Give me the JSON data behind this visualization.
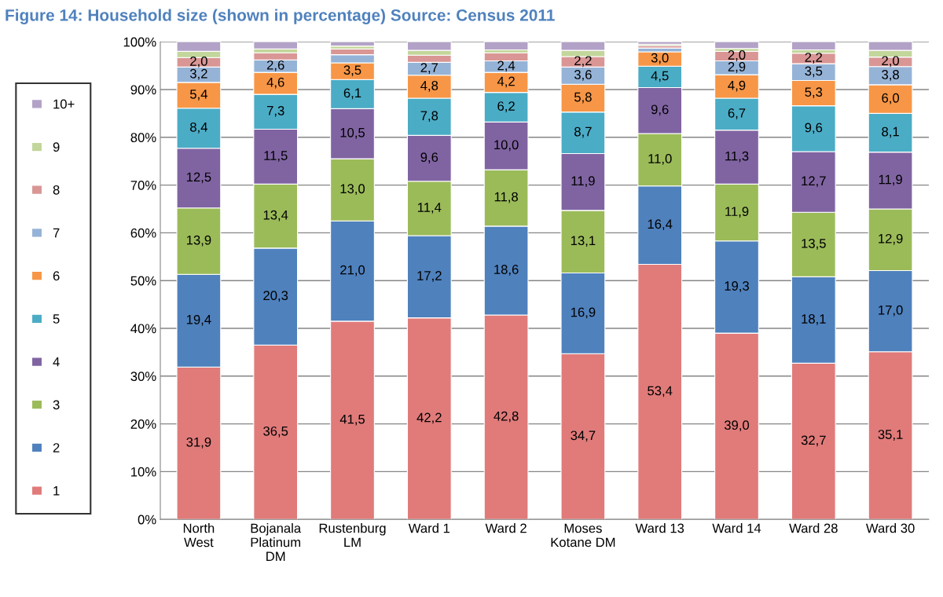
{
  "chart_data": {
    "type": "bar",
    "stacked": true,
    "title": "Figure 14: Household size (shown in percentage) Source: Census 2011",
    "categories": [
      "North\nWest",
      "Bojanala\nPlatinum\nDM",
      "Rustenburg\nLM",
      "Ward 1",
      "Ward 2",
      "Moses\nKotane DM",
      "Ward 13",
      "Ward 14",
      "Ward 28",
      "Ward 30"
    ],
    "series": [
      {
        "name": "1",
        "color": "#e07b7a",
        "values": [
          31.9,
          36.5,
          41.5,
          42.2,
          42.8,
          34.7,
          53.4,
          39.0,
          32.7,
          35.1
        ],
        "value_labels": [
          "31,9",
          "36,5",
          "41,5",
          "42,2",
          "42,8",
          "34,7",
          "53,4",
          "39,0",
          "32,7",
          "35,1"
        ]
      },
      {
        "name": "2",
        "color": "#4f81bd",
        "values": [
          19.4,
          20.3,
          21.0,
          17.2,
          18.6,
          16.9,
          16.4,
          19.3,
          18.1,
          17.0
        ],
        "value_labels": [
          "19,4",
          "20,3",
          "21,0",
          "17,2",
          "18,6",
          "16,9",
          "16,4",
          "19,3",
          "18,1",
          "17,0"
        ]
      },
      {
        "name": "3",
        "color": "#9bbb59",
        "values": [
          13.9,
          13.4,
          13.0,
          11.4,
          11.8,
          13.1,
          11.0,
          11.9,
          13.5,
          12.9
        ],
        "value_labels": [
          "13,9",
          "13,4",
          "13,0",
          "11,4",
          "11,8",
          "13,1",
          "11,0",
          "11,9",
          "13,5",
          "12,9"
        ]
      },
      {
        "name": "4",
        "color": "#8064a2",
        "values": [
          12.5,
          11.5,
          10.5,
          9.6,
          10.0,
          11.9,
          9.6,
          11.3,
          12.7,
          11.9
        ],
        "value_labels": [
          "12,5",
          "11,5",
          "10,5",
          "9,6",
          "10,0",
          "11,9",
          "9,6",
          "11,3",
          "12,7",
          "11,9"
        ]
      },
      {
        "name": "5",
        "color": "#4bacc6",
        "values": [
          8.4,
          7.3,
          6.1,
          7.8,
          6.2,
          8.7,
          4.5,
          6.7,
          9.6,
          8.1
        ],
        "value_labels": [
          "8,4",
          "7,3",
          "6,1",
          "7,8",
          "6,2",
          "8,7",
          "4,5",
          "6,7",
          "9,6",
          "8,1"
        ]
      },
      {
        "name": "6",
        "color": "#f79646",
        "values": [
          5.4,
          4.6,
          3.5,
          4.8,
          4.2,
          5.8,
          3.0,
          4.9,
          5.3,
          6.0
        ],
        "value_labels": [
          "5,4",
          "4,6",
          "3,5",
          "4,8",
          "4,2",
          "5,8",
          "3,0",
          "4,9",
          "5,3",
          "6,0"
        ]
      },
      {
        "name": "7",
        "color": "#95b3d7",
        "values": [
          3.2,
          2.6,
          1.7,
          2.7,
          2.4,
          3.6,
          0.8,
          2.9,
          3.5,
          3.8
        ],
        "value_labels": [
          "3,2",
          "2,6",
          null,
          "2,7",
          "2,4",
          "3,6",
          null,
          "2,9",
          "3,5",
          "3,8"
        ]
      },
      {
        "name": "8",
        "color": "#d99694",
        "values": [
          2.0,
          1.5,
          1.2,
          1.5,
          1.7,
          2.2,
          0.5,
          2.0,
          2.2,
          2.0
        ],
        "value_labels": [
          "2,0",
          null,
          null,
          null,
          null,
          "2,2",
          null,
          "2,0",
          "2,2",
          "2,0"
        ]
      },
      {
        "name": "9",
        "color": "#c3d69b",
        "values": [
          1.3,
          0.8,
          0.6,
          1.0,
          0.6,
          1.3,
          0.3,
          0.6,
          0.7,
          1.4
        ]
      },
      {
        "name": "10+",
        "color": "#b3a2c7",
        "values": [
          2.0,
          1.5,
          0.9,
          1.8,
          1.7,
          1.8,
          0.5,
          1.4,
          1.7,
          1.8
        ]
      }
    ],
    "ylim": [
      0,
      100
    ],
    "yticks": [
      {
        "value": 0,
        "label": "0%"
      },
      {
        "value": 10,
        "label": "10%"
      },
      {
        "value": 20,
        "label": "20%"
      },
      {
        "value": 30,
        "label": "30%"
      },
      {
        "value": 40,
        "label": "40%"
      },
      {
        "value": 50,
        "label": "50%"
      },
      {
        "value": 60,
        "label": "60%"
      },
      {
        "value": 70,
        "label": "70%"
      },
      {
        "value": 80,
        "label": "80%"
      },
      {
        "value": 90,
        "label": "90%"
      },
      {
        "value": 100,
        "label": "100%"
      }
    ],
    "grid": "y",
    "legend": "left"
  }
}
